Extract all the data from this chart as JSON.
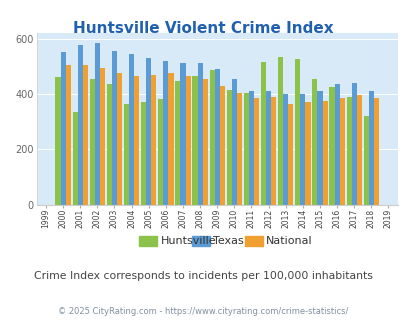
{
  "title": "Huntsville Violent Crime Index",
  "years": [
    1999,
    2000,
    2001,
    2002,
    2003,
    2004,
    2005,
    2006,
    2007,
    2008,
    2009,
    2010,
    2011,
    2012,
    2013,
    2014,
    2015,
    2016,
    2017,
    2018,
    2019
  ],
  "huntsville": [
    0,
    460,
    335,
    455,
    435,
    365,
    370,
    380,
    445,
    465,
    485,
    415,
    405,
    515,
    535,
    525,
    455,
    425,
    390,
    320,
    0
  ],
  "texas": [
    0,
    550,
    575,
    585,
    555,
    545,
    530,
    520,
    510,
    510,
    490,
    455,
    410,
    410,
    400,
    400,
    410,
    435,
    440,
    410,
    0
  ],
  "national": [
    0,
    505,
    505,
    495,
    475,
    465,
    470,
    475,
    465,
    455,
    430,
    405,
    385,
    390,
    365,
    370,
    375,
    385,
    395,
    385,
    0
  ],
  "colors": {
    "huntsville": "#8bc34a",
    "texas": "#5b9bd5",
    "national": "#f0a030"
  },
  "ylim": [
    0,
    620
  ],
  "yticks": [
    0,
    200,
    400,
    600
  ],
  "bg_color": "#d8eaf7",
  "title_color": "#2060b0",
  "footer_text": "Crime Index corresponds to incidents per 100,000 inhabitants",
  "copyright_text": "© 2025 CityRating.com - https://www.cityrating.com/crime-statistics/",
  "footer_color": "#444444",
  "copyright_color": "#8090a0"
}
